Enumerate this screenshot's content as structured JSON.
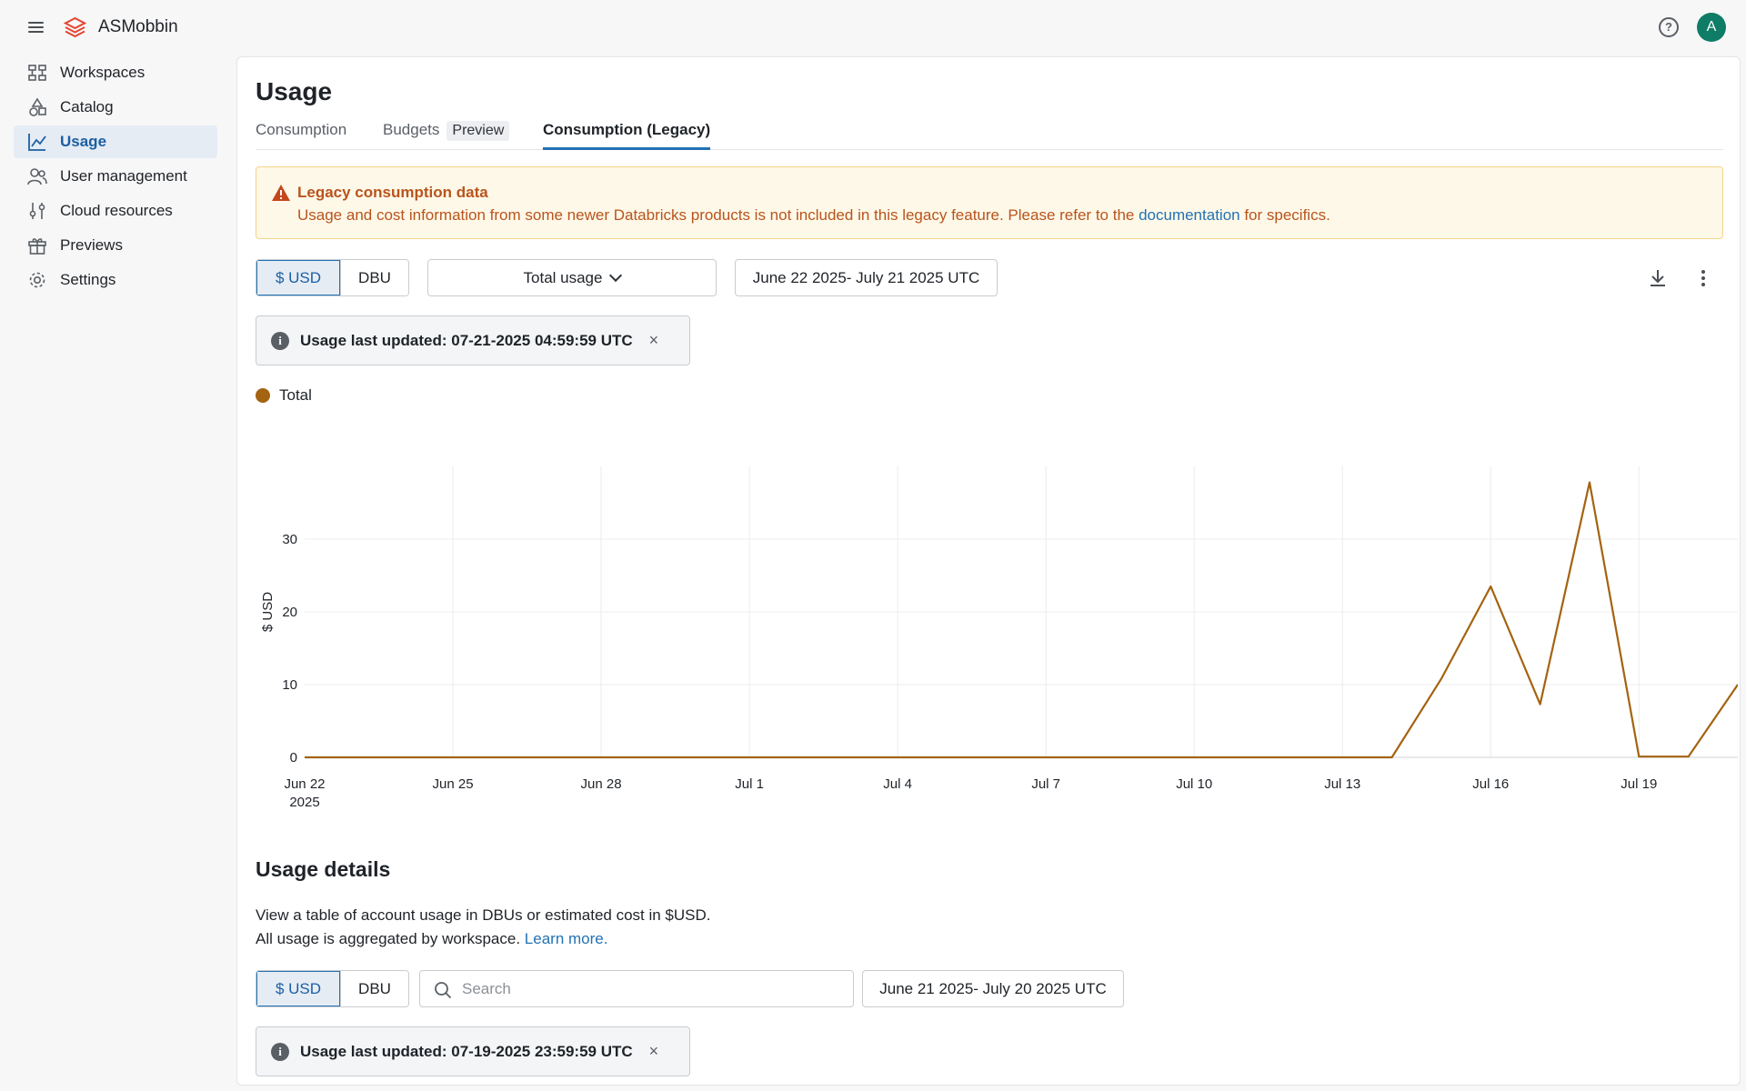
{
  "app": {
    "name": "ASMobbin",
    "avatar_initial": "A",
    "help_glyph": "?"
  },
  "sidebar": {
    "items": [
      {
        "label": "Workspaces",
        "icon": "workspaces-icon"
      },
      {
        "label": "Catalog",
        "icon": "catalog-icon"
      },
      {
        "label": "Usage",
        "icon": "usage-icon",
        "active": true
      },
      {
        "label": "User management",
        "icon": "user-management-icon"
      },
      {
        "label": "Cloud resources",
        "icon": "cloud-resources-icon"
      },
      {
        "label": "Previews",
        "icon": "previews-icon"
      },
      {
        "label": "Settings",
        "icon": "settings-icon"
      }
    ]
  },
  "page": {
    "title": "Usage"
  },
  "tabs": [
    {
      "label": "Consumption"
    },
    {
      "label": "Budgets",
      "tag": "Preview"
    },
    {
      "label": "Consumption (Legacy)",
      "active": true
    }
  ],
  "alert": {
    "title": "Legacy consumption data",
    "body_before": "Usage and cost information from some newer Databricks products is not included in this legacy feature. Please refer to the ",
    "link": "documentation",
    "body_after": " for specifics."
  },
  "controls": {
    "currency_usd": "$ USD",
    "currency_dbu": "DBU",
    "usage_select": "Total usage",
    "date_range": "June 22 2025- July 21 2025 UTC",
    "selected_currency": "$ USD"
  },
  "info_top": {
    "text": "Usage last updated: 07-21-2025 04:59:59 UTC",
    "close": "×"
  },
  "legend": {
    "label": "Total",
    "color": "#a36310"
  },
  "chart_data": {
    "type": "line",
    "ylabel": "$ USD",
    "xlabel": "",
    "x_tick_labels": [
      "Jun 22",
      "Jun 25",
      "Jun 28",
      "Jul 1",
      "Jul 4",
      "Jul 7",
      "Jul 10",
      "Jul 13",
      "Jul 16",
      "Jul 19"
    ],
    "x_tick_sublabel": "2025",
    "y_ticks": [
      0,
      10,
      20,
      30
    ],
    "ylim": [
      0,
      40
    ],
    "grid": true,
    "series": [
      {
        "name": "Total",
        "color": "#a36310",
        "x": [
          "Jun 22",
          "Jun 23",
          "Jun 24",
          "Jun 25",
          "Jun 26",
          "Jun 27",
          "Jun 28",
          "Jun 29",
          "Jun 30",
          "Jul 1",
          "Jul 2",
          "Jul 3",
          "Jul 4",
          "Jul 5",
          "Jul 6",
          "Jul 7",
          "Jul 8",
          "Jul 9",
          "Jul 10",
          "Jul 11",
          "Jul 12",
          "Jul 13",
          "Jul 14",
          "Jul 15",
          "Jul 16",
          "Jul 17",
          "Jul 18",
          "Jul 19",
          "Jul 20",
          "Jul 21"
        ],
        "values": [
          0,
          0,
          0,
          0,
          0,
          0,
          0,
          0,
          0,
          0,
          0,
          0,
          0,
          0,
          0,
          0,
          0,
          0,
          0,
          0,
          0,
          0,
          0,
          10.8,
          23.5,
          7.3,
          37.8,
          0.1,
          0.1,
          10
        ]
      }
    ]
  },
  "details": {
    "title": "Usage details",
    "line1": "View a table of account usage in DBUs or estimated cost in $USD.",
    "line2_before": "All usage is aggregated by workspace. ",
    "line2_link": "Learn more.",
    "search_placeholder": "Search",
    "date_range": "June 21 2025- July 20 2025 UTC"
  },
  "info_bottom": {
    "text": "Usage last updated: 07-19-2025 23:59:59 UTC",
    "close": "×"
  }
}
